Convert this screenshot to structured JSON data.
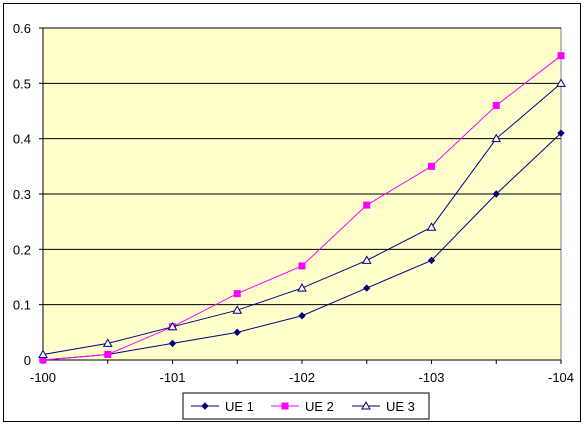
{
  "chart_data": {
    "type": "line",
    "title": "",
    "xlabel": "",
    "ylabel": "",
    "x": [
      -100,
      -100.5,
      -101,
      -101.5,
      -102,
      -102.5,
      -103,
      -103.5,
      -104
    ],
    "x_tick_labels": [
      "-100",
      "-101",
      "-102",
      "-103",
      "-104"
    ],
    "x_tick_values": [
      -100,
      -101,
      -102,
      -103,
      -104
    ],
    "y_tick_labels": [
      "0",
      "0.1",
      "0.2",
      "0.3",
      "0.4",
      "0.5",
      "0.6"
    ],
    "y_tick_values": [
      0,
      0.1,
      0.2,
      0.3,
      0.4,
      0.5,
      0.6
    ],
    "xlim": [
      -100,
      -104
    ],
    "ylim": [
      0,
      0.6
    ],
    "grid": "horizontal",
    "legend_position": "bottom",
    "plot_background": "#FFFFCC",
    "series": [
      {
        "name": "UE 1",
        "color": "#000080",
        "marker": "diamond",
        "values": [
          0,
          0.01,
          0.03,
          0.05,
          0.08,
          0.13,
          0.18,
          0.3,
          0.41
        ]
      },
      {
        "name": "UE 2",
        "color": "#FF00FF",
        "marker": "square",
        "values": [
          0,
          0.01,
          0.06,
          0.12,
          0.17,
          0.28,
          0.35,
          0.46,
          0.55
        ]
      },
      {
        "name": "UE 3",
        "color": "#000080",
        "marker": "triangle",
        "values": [
          0.01,
          0.03,
          0.06,
          0.09,
          0.13,
          0.18,
          0.24,
          0.4,
          0.5
        ]
      }
    ]
  }
}
